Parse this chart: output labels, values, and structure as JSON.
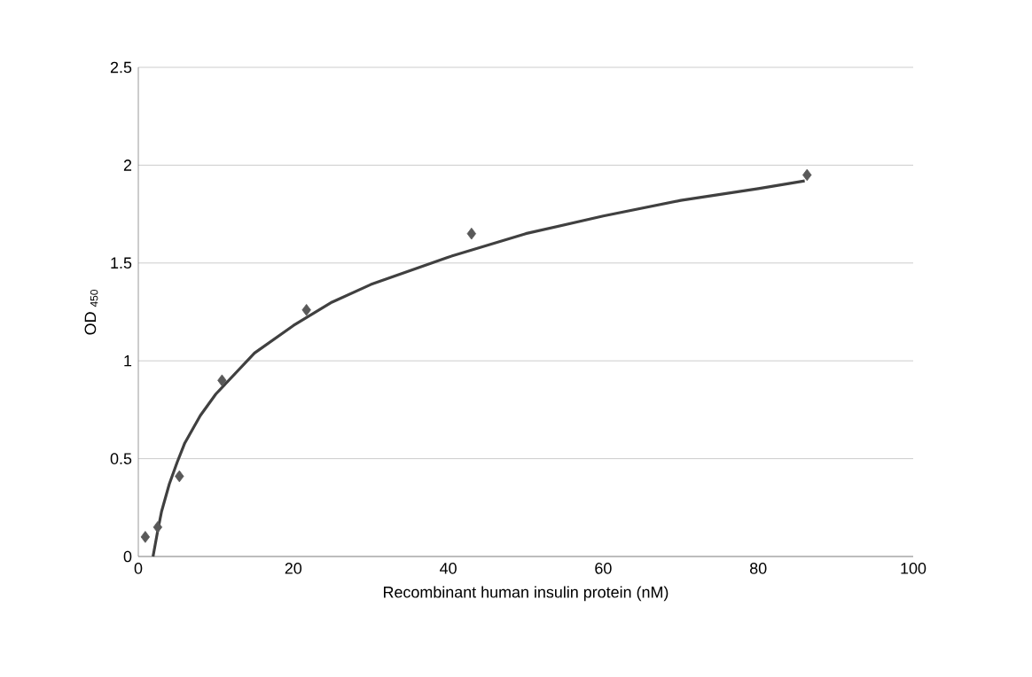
{
  "chart_data": {
    "type": "scatter",
    "xlabel": "Recombinant human insulin protein (nM)",
    "ylabel": "OD $_{450}$",
    "xlim": [
      0,
      100
    ],
    "xticks": [
      0,
      20,
      40,
      60,
      80,
      100
    ],
    "ylim": [
      0,
      2.5
    ],
    "yticks": [
      0,
      0.5,
      1,
      1.5,
      2,
      2.5
    ],
    "grid": "y",
    "series": [
      {
        "color": "#595959",
        "marker": "diamond",
        "x": [
          0.9,
          2.5,
          5.3,
          10.8,
          21.7,
          43,
          86.3
        ],
        "values": [
          0.1,
          0.15,
          0.41,
          0.9,
          1.26,
          1.65,
          1.95
        ]
      },
      {
        "type": "line",
        "color": "#404040",
        "marker": "none",
        "line_style": "solid",
        "x": [
          1.9,
          2.5,
          3,
          4,
          5,
          6,
          8,
          10,
          15,
          20,
          25,
          30,
          40,
          50,
          60,
          70,
          80,
          86
        ],
        "values": [
          0.0,
          0.13,
          0.23,
          0.37,
          0.48,
          0.58,
          0.72,
          0.83,
          1.04,
          1.18,
          1.3,
          1.39,
          1.53,
          1.65,
          1.74,
          1.82,
          1.88,
          1.92
        ]
      }
    ]
  }
}
